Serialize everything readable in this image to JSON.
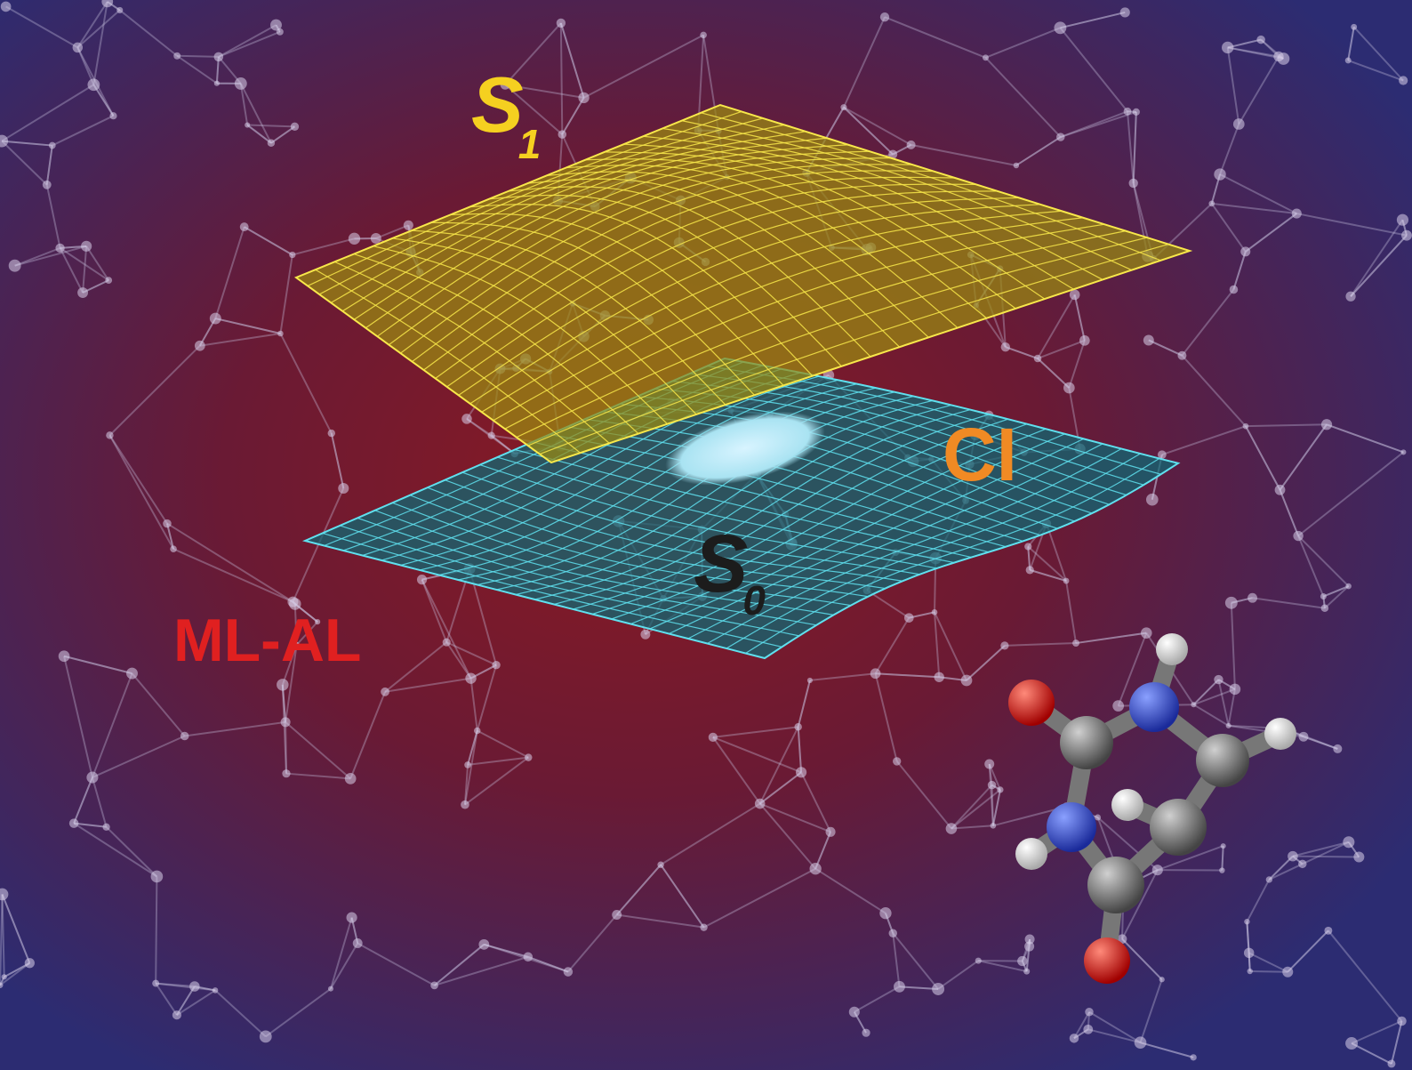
{
  "labels": {
    "s1": {
      "main": "S",
      "sub": "1"
    },
    "s0": {
      "main": "S",
      "sub": "0"
    },
    "ci": "CI",
    "ml_al": "ML-AL"
  }
}
